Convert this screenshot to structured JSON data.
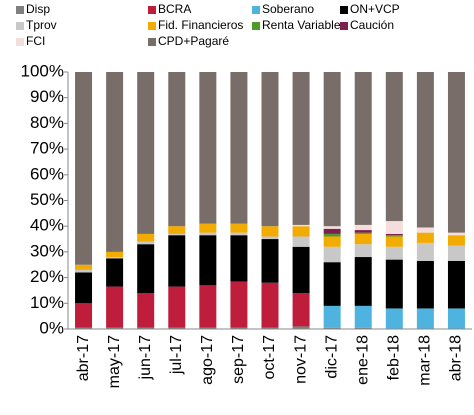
{
  "chart_data": {
    "type": "stacked_bar",
    "categories": [
      "abr-17",
      "may-17",
      "jun-17",
      "jul-17",
      "ago-17",
      "sep-17",
      "oct-17",
      "nov-17",
      "dic-17",
      "ene-18",
      "feb-18",
      "mar-18",
      "abr-18"
    ],
    "series": [
      {
        "name": "Disp",
        "color": "#7f7f7f",
        "values": [
          0.5,
          0.5,
          0.5,
          0.5,
          0.5,
          0.5,
          0.5,
          1,
          0.5,
          0.5,
          0,
          0,
          0
        ]
      },
      {
        "name": "BCRA",
        "color": "#be1e3c",
        "values": [
          9.5,
          16,
          13.5,
          16,
          16.5,
          18,
          17.5,
          13,
          0,
          0,
          0,
          0,
          0
        ]
      },
      {
        "name": "Soberano",
        "color": "#4fb3df",
        "values": [
          0,
          0,
          0,
          0,
          0,
          0,
          0,
          0,
          8.5,
          8.5,
          8,
          8,
          8
        ]
      },
      {
        "name": "ON+VCP",
        "color": "#000000",
        "values": [
          12,
          11,
          19,
          20,
          19.5,
          18,
          17,
          18,
          17,
          19,
          19,
          18.5,
          18.5
        ]
      },
      {
        "name": "Tprov",
        "color": "#c8c8c8",
        "values": [
          1,
          0.5,
          1,
          0.5,
          1,
          1,
          1,
          4,
          6,
          5,
          5,
          7,
          6
        ]
      },
      {
        "name": "Fid. Financieros",
        "color": "#f2ab00",
        "values": [
          2,
          2,
          3,
          3,
          3.5,
          3.5,
          4,
          4,
          4,
          4,
          4,
          4,
          4
        ]
      },
      {
        "name": "Renta Variable",
        "color": "#4e9a2a",
        "values": [
          0,
          0,
          0,
          0,
          0,
          0,
          0,
          0,
          1,
          0.5,
          0.5,
          0,
          0
        ]
      },
      {
        "name": "Caución",
        "color": "#7f1f4f",
        "values": [
          0,
          0,
          0,
          0,
          0,
          0,
          0,
          0,
          2,
          1,
          0.5,
          0,
          0
        ]
      },
      {
        "name": "FCI",
        "color": "#f4dedd",
        "values": [
          0,
          0,
          0,
          0,
          0,
          0,
          0,
          0.5,
          1,
          2,
          5,
          2,
          1
        ]
      },
      {
        "name": "CPD+Pagaré",
        "color": "#786d68",
        "values": [
          75,
          70,
          63,
          60,
          59,
          59,
          60,
          59.5,
          60,
          59.5,
          58,
          60.5,
          62.5
        ]
      }
    ],
    "ylim": [
      0,
      100
    ],
    "yticks": [
      {
        "value": 0,
        "label": "0%"
      },
      {
        "value": 10,
        "label": "10%"
      },
      {
        "value": 20,
        "label": "20%"
      },
      {
        "value": 30,
        "label": "30%"
      },
      {
        "value": 40,
        "label": "40%"
      },
      {
        "value": 50,
        "label": "50%"
      },
      {
        "value": 60,
        "label": "60%"
      },
      {
        "value": 70,
        "label": "70%"
      },
      {
        "value": 80,
        "label": "80%"
      },
      {
        "value": 90,
        "label": "90%"
      },
      {
        "value": 100,
        "label": "100%"
      }
    ],
    "legend": "top"
  }
}
